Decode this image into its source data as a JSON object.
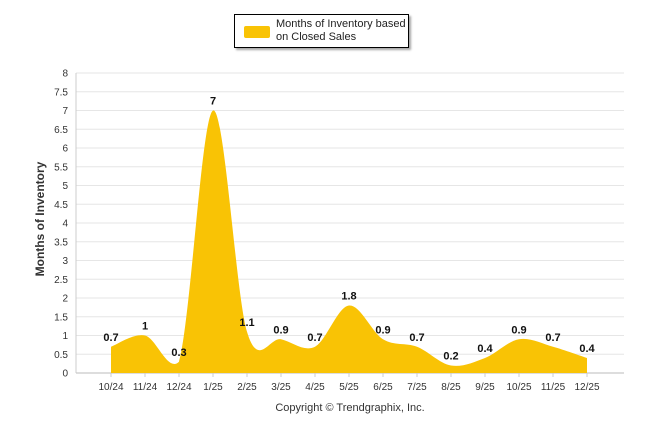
{
  "chart_data": {
    "type": "area",
    "categories": [
      "10/24",
      "11/24",
      "12/24",
      "1/25",
      "2/25",
      "3/25",
      "4/25",
      "5/25",
      "6/25",
      "7/25",
      "8/25",
      "9/25",
      "10/25",
      "11/25",
      "12/25"
    ],
    "series": [
      {
        "name": "Months of Inventory based on Closed Sales",
        "values": [
          0.7,
          1,
          0.3,
          7,
          1.1,
          0.9,
          0.7,
          1.8,
          0.9,
          0.7,
          0.2,
          0.4,
          0.9,
          0.7,
          0.4
        ],
        "data_labels": [
          "0.7",
          "1",
          "0.3",
          "7",
          "1.1",
          "0.9",
          "0.7",
          "1.8",
          "0.9",
          "0.7",
          "0.2",
          "0.4",
          "0.9",
          "0.7",
          "0.4"
        ],
        "color": "#F9C305"
      }
    ],
    "ylabel": "Months of Inventory",
    "ylim": [
      0,
      8
    ],
    "yticks": [
      "0",
      "0.5",
      "1",
      "1.5",
      "2",
      "2.5",
      "3",
      "3.5",
      "4",
      "4.5",
      "5",
      "5.5",
      "6",
      "6.5",
      "7",
      "7.5",
      "8"
    ],
    "grid": true,
    "legend_position": "top-center",
    "footer": "Copyright © Trendgraphix, Inc."
  }
}
